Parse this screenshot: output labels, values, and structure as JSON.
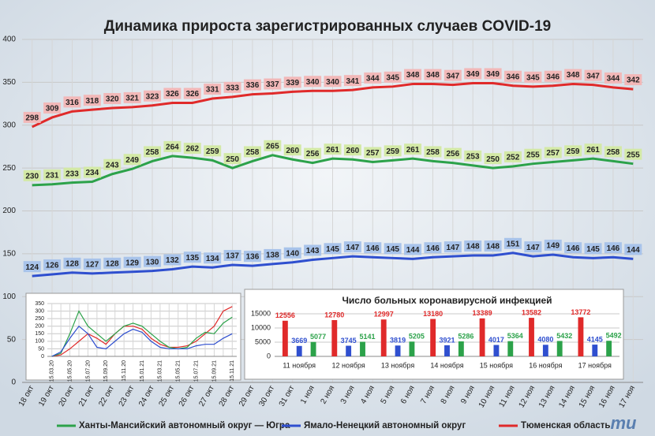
{
  "title": "Динамика прироста зарегистрированных случаев COVID-19",
  "watermark": "mu",
  "chart_data": [
    {
      "type": "line",
      "categories": [
        "18 окт",
        "19 окт",
        "20 окт",
        "21 окт",
        "22 окт",
        "23 окт",
        "24 окт",
        "25 окт",
        "26 окт",
        "27 окт",
        "28 окт",
        "29 окт",
        "30 окт",
        "31 окт",
        "1 ноя",
        "2 ноя",
        "3 ноя",
        "4 ноя",
        "5 ноя",
        "6 ноя",
        "7 ноя",
        "8 ноя",
        "9 ноя",
        "10 ноя",
        "11 ноя",
        "12 ноя",
        "13 ноя",
        "14 ноя",
        "15 ноя",
        "16 ноя",
        "17 ноя"
      ],
      "series": [
        {
          "name": "Ханты-Мансийский автономный округ — Югра",
          "color": "#2ca24a",
          "label_background": "#d3e9a6",
          "values": [
            230,
            231,
            233,
            234,
            243,
            249,
            258,
            264,
            262,
            259,
            250,
            258,
            265,
            260,
            256,
            261,
            260,
            257,
            259,
            261,
            258,
            256,
            253,
            250,
            252,
            255,
            257,
            259,
            261,
            258,
            255
          ]
        },
        {
          "name": "Ямало-Ненецкий автономный округ",
          "color": "#2f4fcf",
          "label_background": "#a8c3ea",
          "values": [
            124,
            126,
            128,
            127,
            128,
            129,
            130,
            132,
            135,
            134,
            137,
            136,
            138,
            140,
            143,
            145,
            147,
            146,
            145,
            144,
            146,
            147,
            148,
            148,
            151,
            147,
            149,
            146,
            145,
            146,
            144
          ]
        },
        {
          "name": "Тюменская область",
          "color": "#e02a2a",
          "label_background": "#f2b8b8",
          "values": [
            298,
            309,
            316,
            318,
            320,
            321,
            323,
            326,
            326,
            331,
            333,
            336,
            337,
            339,
            340,
            340,
            341,
            344,
            345,
            348,
            348,
            347,
            349,
            349,
            346,
            345,
            346,
            348,
            347,
            344,
            342
          ]
        }
      ],
      "ylim": [
        0,
        400
      ],
      "yticks": [
        0,
        50,
        100,
        150,
        200,
        250,
        300,
        350,
        400
      ],
      "grid": true,
      "data_labels": true
    },
    {
      "type": "line",
      "categories": [
        "15.03.20",
        null,
        "15.05.20",
        null,
        "15.07.20",
        null,
        "15.09.20",
        null,
        "15.11.20",
        null,
        "15.01.21",
        null,
        "15.03.21",
        null,
        "15.05.21",
        null,
        "15.07.21",
        null,
        "15.09.21",
        null,
        "15.11.21"
      ],
      "series": [
        {
          "color": "#e02a2a",
          "values": [
            0,
            10,
            50,
            100,
            150,
            120,
            80,
            150,
            200,
            200,
            180,
            120,
            80,
            60,
            60,
            70,
            100,
            150,
            200,
            300,
            330
          ]
        },
        {
          "color": "#2ca24a",
          "values": [
            0,
            20,
            150,
            300,
            200,
            150,
            100,
            150,
            200,
            220,
            200,
            150,
            100,
            60,
            50,
            60,
            120,
            160,
            150,
            220,
            260
          ]
        },
        {
          "color": "#2f4fcf",
          "values": [
            0,
            30,
            120,
            200,
            150,
            60,
            50,
            100,
            150,
            180,
            160,
            100,
            60,
            50,
            50,
            50,
            70,
            80,
            80,
            120,
            150
          ]
        }
      ],
      "ylim": [
        0,
        350
      ],
      "yticks": [
        0,
        50,
        100,
        150,
        200,
        250,
        300,
        350
      ],
      "grid": true,
      "data_labels": false
    },
    {
      "type": "bar",
      "title": "Число больных коронавирусной инфекцией",
      "categories": [
        "11 ноября",
        "12 ноября",
        "13 ноября",
        "14 ноября",
        "15 ноября",
        "16 ноября",
        "17 ноября"
      ],
      "series": [
        {
          "color": "#e02a2a",
          "values": [
            12556,
            12780,
            12997,
            13180,
            13389,
            13582,
            13772
          ]
        },
        {
          "color": "#2f4fcf",
          "values": [
            3669,
            3745,
            3819,
            3921,
            4017,
            4080,
            4145
          ]
        },
        {
          "color": "#2ca24a",
          "values": [
            5077,
            5141,
            5205,
            5286,
            5364,
            5432,
            5492
          ]
        }
      ],
      "ylim": [
        0,
        15000
      ],
      "yticks": [
        0,
        5000,
        10000,
        15000
      ],
      "grid": true,
      "data_labels": true
    }
  ]
}
